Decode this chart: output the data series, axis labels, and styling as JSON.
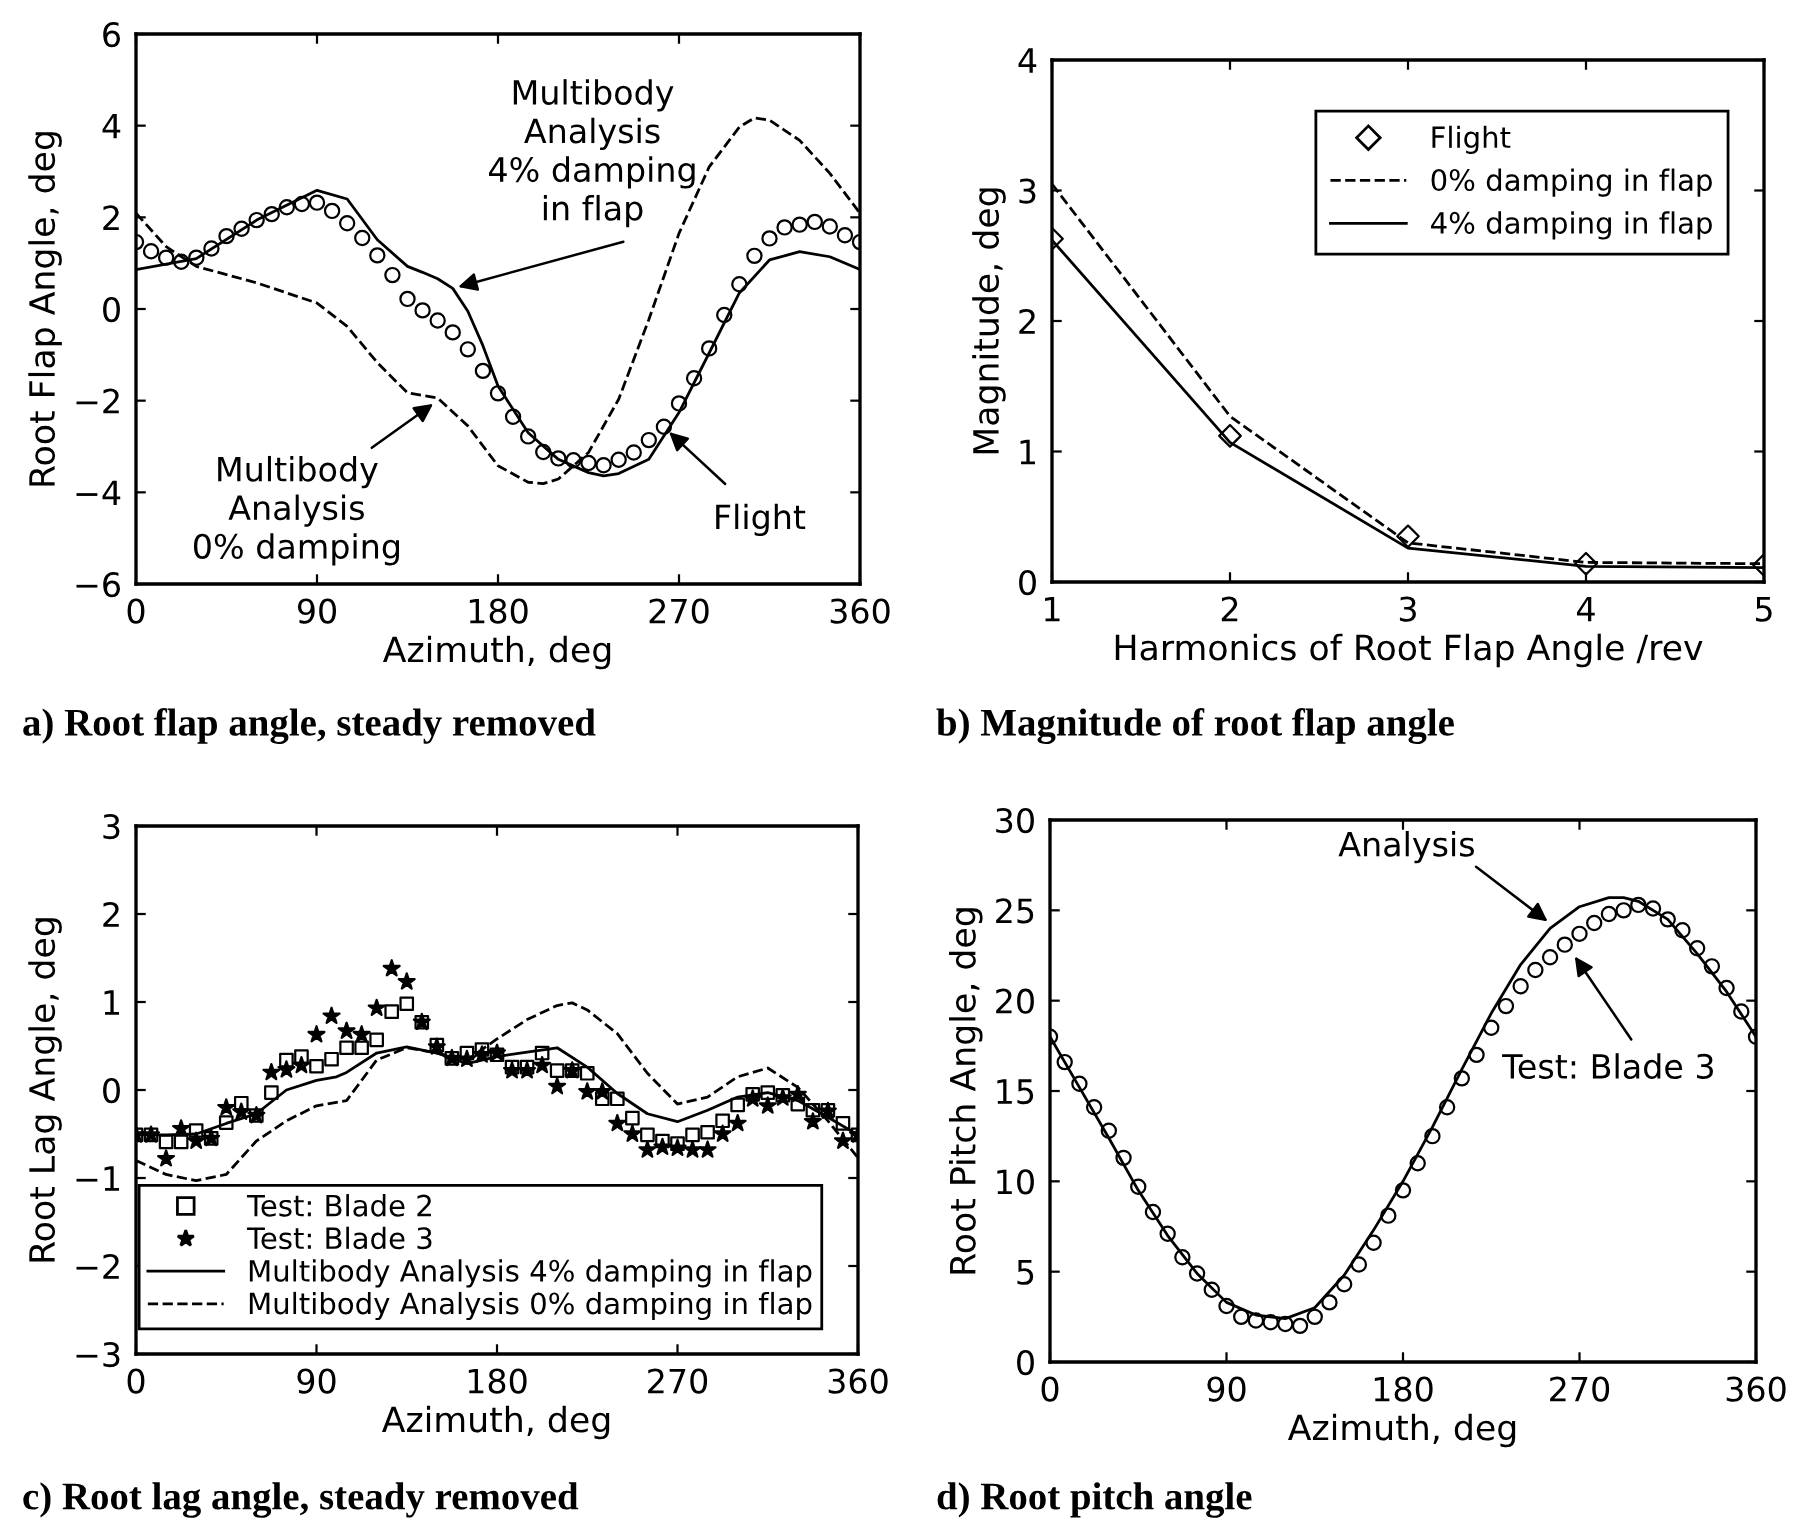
{
  "chart_data": [
    {
      "type": "line",
      "title": "a) Root flap angle, steady removed",
      "xlabel": "Azimuth, deg",
      "ylabel": "Root Flap Angle, deg",
      "xlim": [
        0,
        360
      ],
      "xticks": [
        0,
        90,
        180,
        270,
        360
      ],
      "ylim": [
        -6,
        6
      ],
      "yticks": [
        -6,
        -4,
        -2,
        0,
        2,
        4,
        6
      ],
      "grid": false,
      "legend": false,
      "annotations": [
        {
          "text": "Multibody\nAnalysis\n4% damping\nin flap",
          "x": 157.5,
          "y": 0.45
        },
        {
          "text": "Multibody\nAnalysis\n0% damping",
          "x": 150,
          "y": -2.0
        },
        {
          "text": "Flight",
          "x": 263,
          "y": -2.6
        }
      ],
      "series": [
        {
          "type": "scatter",
          "marker": "circle",
          "color": "#000000",
          "x": [
            0,
            7.5,
            15,
            22.5,
            30,
            37.5,
            45,
            52.5,
            60,
            67.5,
            75,
            82.5,
            90,
            97.5,
            105,
            112.5,
            120,
            127.5,
            135,
            142.5,
            150,
            157.5,
            165,
            172.5,
            180,
            187.5,
            195,
            202.5,
            210,
            217.5,
            225,
            232.5,
            240,
            247.5,
            255,
            262.5,
            270,
            277.5,
            285,
            292.5,
            300,
            307.5,
            315,
            322.5,
            330,
            337.5,
            345,
            352.5,
            360
          ],
          "values": [
            1.46,
            1.26,
            1.12,
            1.03,
            1.12,
            1.32,
            1.59,
            1.75,
            1.94,
            2.07,
            2.22,
            2.29,
            2.32,
            2.14,
            1.87,
            1.55,
            1.17,
            0.74,
            0.22,
            -0.03,
            -0.25,
            -0.51,
            -0.88,
            -1.35,
            -1.84,
            -2.35,
            -2.78,
            -3.12,
            -3.26,
            -3.3,
            -3.36,
            -3.41,
            -3.29,
            -3.13,
            -2.86,
            -2.57,
            -2.06,
            -1.51,
            -0.86,
            -0.13,
            0.54,
            1.16,
            1.54,
            1.78,
            1.84,
            1.9,
            1.8,
            1.61,
            1.46
          ]
        },
        {
          "line_style": "solid",
          "color": "#000000",
          "x": [
            0,
            30,
            60,
            90,
            105,
            120,
            135,
            142.5,
            150,
            157.5,
            165,
            172.5,
            180,
            195,
            210,
            225,
            232.5,
            240,
            255,
            270,
            285,
            300,
            315,
            330,
            345,
            360
          ],
          "values": [
            0.86,
            1.1,
            1.94,
            2.59,
            2.4,
            1.51,
            0.93,
            0.8,
            0.66,
            0.45,
            -0.05,
            -0.8,
            -1.68,
            -2.7,
            -3.28,
            -3.57,
            -3.64,
            -3.59,
            -3.28,
            -2.26,
            -0.96,
            0.35,
            1.07,
            1.25,
            1.14,
            0.86
          ]
        },
        {
          "line_style": "dashed",
          "color": "#000000",
          "x": [
            0,
            15,
            30,
            60,
            90,
            105,
            120,
            135,
            150,
            165,
            180,
            195,
            202.5,
            210,
            225,
            240,
            255,
            270,
            285,
            300,
            307.5,
            315,
            330,
            345,
            360
          ],
          "values": [
            2.09,
            1.36,
            0.93,
            0.57,
            0.13,
            -0.38,
            -1.17,
            -1.83,
            -1.94,
            -2.55,
            -3.42,
            -3.78,
            -3.81,
            -3.71,
            -3.13,
            -1.97,
            -0.23,
            1.65,
            3.1,
            3.97,
            4.17,
            4.12,
            3.68,
            2.96,
            2.09
          ]
        }
      ]
    },
    {
      "type": "line",
      "title": "b) Magnitude of root flap angle",
      "xlabel": "Harmonics of Root Flap Angle /rev",
      "ylabel": "Magnitude, deg",
      "xlim": [
        1,
        5
      ],
      "xticks": [
        1,
        2,
        3,
        4,
        5
      ],
      "ylim": [
        0,
        4
      ],
      "yticks": [
        0,
        1,
        2,
        3,
        4
      ],
      "grid": false,
      "legend": "top right",
      "series": [
        {
          "name": "Flight",
          "type": "scatter",
          "marker": "diamond",
          "color": "#000000",
          "x": [
            1,
            2,
            3,
            4,
            5
          ],
          "values": [
            2.63,
            1.12,
            0.35,
            0.14,
            0.13
          ]
        },
        {
          "name": "0% damping in flap",
          "line_style": "dashed",
          "color": "#000000",
          "x": [
            1,
            2,
            3,
            4,
            5
          ],
          "values": [
            3.05,
            1.27,
            0.3,
            0.15,
            0.14
          ]
        },
        {
          "name": "4% damping in flap",
          "line_style": "solid",
          "color": "#000000",
          "x": [
            1,
            2,
            3,
            4,
            5
          ],
          "values": [
            2.62,
            1.07,
            0.26,
            0.12,
            0.11
          ]
        }
      ]
    },
    {
      "type": "line",
      "title": "c) Root lag angle, steady removed",
      "xlabel": "Azimuth, deg",
      "ylabel": "Root Lag Angle, deg",
      "xlim": [
        0,
        360
      ],
      "xticks": [
        0,
        90,
        180,
        270,
        360
      ],
      "ylim": [
        -3,
        3
      ],
      "yticks": [
        -3,
        -2,
        -1,
        0,
        1,
        2,
        3
      ],
      "grid": false,
      "legend": "bottom right",
      "series": [
        {
          "name": "Test: Blade 2",
          "type": "scatter",
          "marker": "square",
          "color": "#000000",
          "x": [
            0,
            7.5,
            15,
            22.5,
            30,
            37.5,
            45,
            52.5,
            60,
            67.5,
            75,
            82.5,
            90,
            97.5,
            105,
            112.5,
            120,
            127.5,
            135,
            142.5,
            150,
            157.5,
            165,
            172.5,
            180,
            187.5,
            195,
            202.5,
            210,
            217.5,
            225,
            232.5,
            240,
            247.5,
            255,
            262.5,
            270,
            277.5,
            285,
            292.5,
            300,
            307.5,
            315,
            322.5,
            330,
            337.5,
            345,
            352.5,
            360
          ],
          "values": [
            -0.51,
            -0.51,
            -0.59,
            -0.59,
            -0.46,
            -0.55,
            -0.37,
            -0.15,
            -0.29,
            -0.03,
            0.34,
            0.38,
            0.27,
            0.35,
            0.48,
            0.48,
            0.57,
            0.89,
            0.98,
            0.77,
            0.51,
            0.36,
            0.42,
            0.46,
            0.4,
            0.26,
            0.26,
            0.42,
            0.22,
            0.22,
            0.19,
            -0.1,
            -0.1,
            -0.32,
            -0.51,
            -0.58,
            -0.61,
            -0.51,
            -0.48,
            -0.35,
            -0.17,
            -0.05,
            -0.03,
            -0.06,
            -0.16,
            -0.23,
            -0.23,
            -0.38,
            -0.51
          ]
        },
        {
          "name": "Test: Blade 3",
          "type": "scatter",
          "marker": "star",
          "color": "#000000",
          "x": [
            0,
            7.5,
            15,
            22.5,
            30,
            37.5,
            45,
            52.5,
            60,
            67.5,
            75,
            82.5,
            90,
            97.5,
            105,
            112.5,
            120,
            127.5,
            135,
            142.5,
            150,
            157.5,
            165,
            172.5,
            180,
            187.5,
            195,
            202.5,
            210,
            217.5,
            225,
            232.5,
            240,
            247.5,
            255,
            262.5,
            270,
            277.5,
            285,
            292.5,
            300,
            307.5,
            315,
            322.5,
            330,
            337.5,
            345,
            352.5,
            360
          ],
          "values": [
            -0.51,
            -0.51,
            -0.78,
            -0.44,
            -0.58,
            -0.55,
            -0.2,
            -0.25,
            -0.29,
            0.2,
            0.23,
            0.28,
            0.63,
            0.84,
            0.67,
            0.63,
            0.93,
            1.38,
            1.23,
            0.77,
            0.49,
            0.36,
            0.35,
            0.4,
            0.42,
            0.22,
            0.22,
            0.28,
            0.04,
            0.22,
            -0.02,
            -0.02,
            -0.38,
            -0.5,
            -0.68,
            -0.65,
            -0.66,
            -0.68,
            -0.68,
            -0.5,
            -0.38,
            -0.1,
            -0.18,
            -0.09,
            -0.05,
            -0.36,
            -0.24,
            -0.58,
            -0.51
          ]
        },
        {
          "name": "Multibody Analysis 4% damping in flap",
          "line_style": "solid",
          "color": "#000000",
          "x": [
            0,
            15,
            30,
            45,
            60,
            75,
            90,
            100,
            105,
            120,
            135,
            150,
            165,
            180,
            195,
            210,
            225,
            240,
            255,
            270,
            285,
            300,
            315,
            330,
            345,
            360
          ],
          "values": [
            -0.51,
            -0.51,
            -0.5,
            -0.38,
            -0.27,
            0.0,
            0.11,
            0.15,
            0.2,
            0.42,
            0.49,
            0.42,
            0.3,
            0.38,
            0.43,
            0.48,
            0.26,
            -0.04,
            -0.27,
            -0.36,
            -0.23,
            -0.08,
            -0.03,
            -0.12,
            -0.31,
            -0.51
          ]
        },
        {
          "name": "Multibody Analysis 0% damping in flap",
          "line_style": "dashed",
          "color": "#000000",
          "x": [
            0,
            15,
            30,
            45,
            60,
            75,
            90,
            105,
            120,
            135,
            150,
            165,
            180,
            195,
            210,
            217.5,
            225,
            240,
            255,
            270,
            285,
            300,
            315,
            330,
            345,
            360
          ],
          "values": [
            -0.8,
            -0.96,
            -1.03,
            -0.96,
            -0.58,
            -0.35,
            -0.18,
            -0.12,
            0.34,
            0.48,
            0.42,
            0.34,
            0.58,
            0.8,
            0.96,
            0.99,
            0.91,
            0.64,
            0.19,
            -0.16,
            -0.08,
            0.15,
            0.25,
            0.03,
            -0.35,
            -0.77
          ]
        }
      ]
    },
    {
      "type": "line",
      "title": "d) Root pitch angle",
      "xlabel": "Azimuth, deg",
      "ylabel": "Root Pitch Angle, deg",
      "xlim": [
        0,
        360
      ],
      "xticks": [
        0,
        90,
        180,
        270,
        360
      ],
      "ylim": [
        0,
        30
      ],
      "yticks": [
        0,
        5,
        10,
        15,
        20,
        25,
        30
      ],
      "grid": false,
      "legend": false,
      "annotations": [
        {
          "text": "Analysis",
          "x": 256,
          "y": 24.2
        },
        {
          "text": "Test: Blade 3",
          "x": 266,
          "y": 22.7
        }
      ],
      "series": [
        {
          "type": "scatter",
          "marker": "circle",
          "color": "#000000",
          "x": [
            0,
            7.5,
            15,
            22.5,
            30,
            37.5,
            45,
            52.5,
            60,
            67.5,
            75,
            82.5,
            90,
            97.5,
            105,
            112.5,
            120,
            127.5,
            135,
            142.5,
            150,
            157.5,
            165,
            172.5,
            180,
            187.5,
            195,
            202.5,
            210,
            217.5,
            225,
            232.5,
            240,
            247.5,
            255,
            262.5,
            270,
            277.5,
            285,
            292.5,
            300,
            307.5,
            315,
            322.5,
            330,
            337.5,
            345,
            352.5,
            360
          ],
          "values": [
            18.0,
            16.6,
            15.4,
            14.1,
            12.8,
            11.3,
            9.7,
            8.3,
            7.1,
            5.8,
            4.9,
            4.0,
            3.1,
            2.5,
            2.3,
            2.2,
            2.1,
            2.0,
            2.5,
            3.3,
            4.3,
            5.4,
            6.6,
            8.1,
            9.5,
            11.0,
            12.5,
            14.1,
            15.7,
            17.0,
            18.5,
            19.7,
            20.8,
            21.7,
            22.4,
            23.1,
            23.7,
            24.3,
            24.8,
            25.0,
            25.3,
            25.1,
            24.5,
            23.9,
            22.9,
            21.9,
            20.7,
            19.4,
            18.0
          ]
        },
        {
          "line_style": "solid",
          "color": "#000000",
          "x": [
            0,
            15,
            30,
            45,
            60,
            75,
            90,
            105,
            120,
            135,
            150,
            165,
            180,
            195,
            210,
            225,
            240,
            255,
            270,
            285,
            292.5,
            300,
            315,
            330,
            345,
            360
          ],
          "values": [
            18.0,
            15.2,
            12.4,
            9.5,
            7.0,
            4.9,
            3.3,
            2.6,
            2.4,
            3.0,
            4.8,
            7.3,
            10.0,
            13.0,
            16.2,
            19.3,
            22.0,
            24.0,
            25.2,
            25.7,
            25.7,
            25.5,
            24.5,
            22.6,
            20.5,
            18.0
          ]
        }
      ]
    }
  ]
}
